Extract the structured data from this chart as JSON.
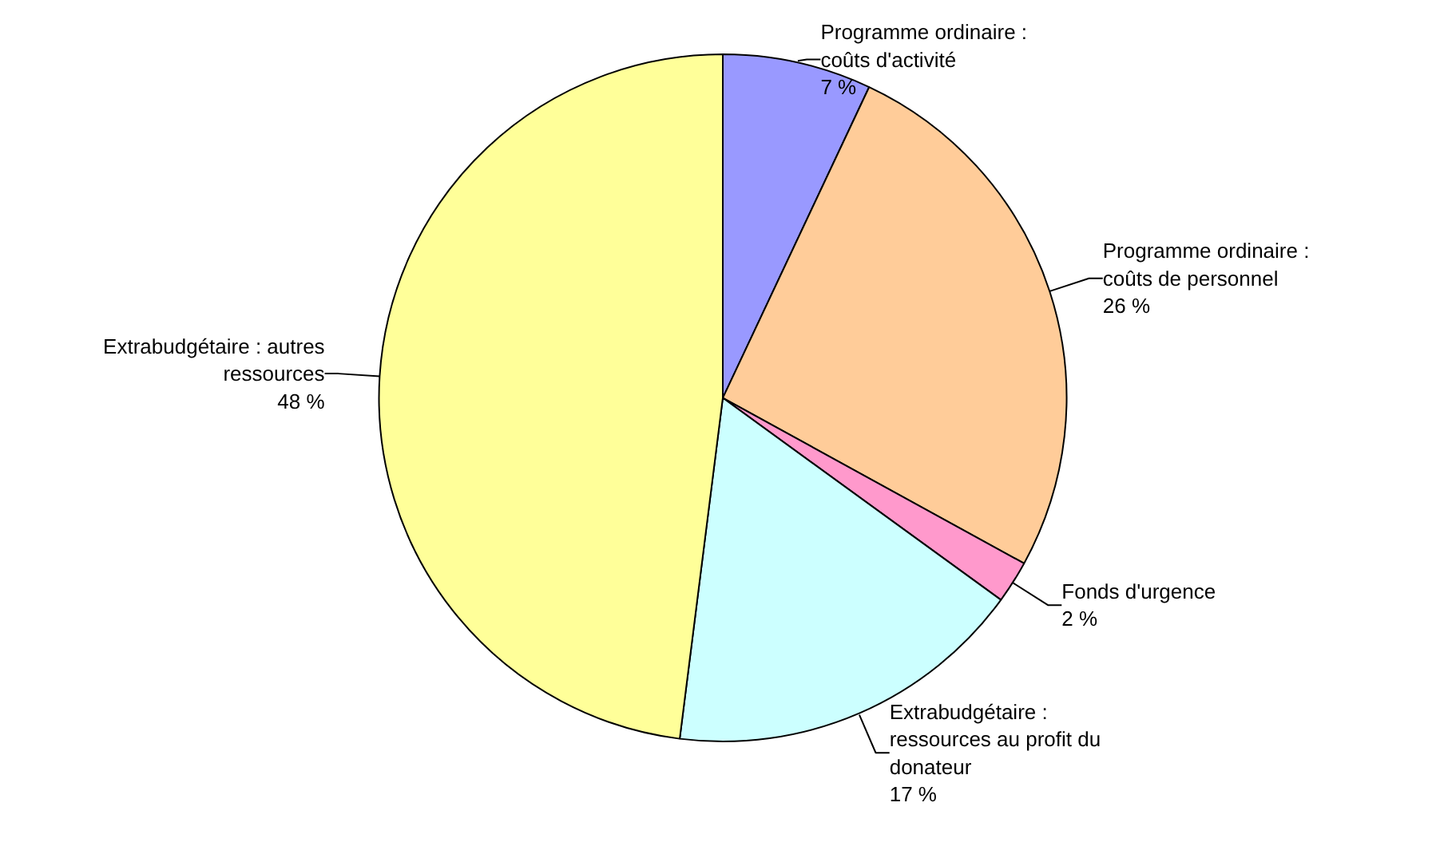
{
  "chart_data": {
    "type": "pie",
    "categories": [
      "Programme ordinaire : coûts d'activité",
      "Programme ordinaire : coûts de personnel",
      "Fonds d'urgence",
      "Extrabudgétaire : ressources au profit du donateur",
      "Extrabudgétaire : autres ressources"
    ],
    "values": [
      7,
      26,
      2,
      17,
      48
    ],
    "colors": [
      "#9999ff",
      "#ffcc99",
      "#ff99cc",
      "#ccffff",
      "#ffff99"
    ],
    "value_labels": [
      "7 %",
      "26 %",
      "2 %",
      "17 %",
      "48 %"
    ]
  }
}
